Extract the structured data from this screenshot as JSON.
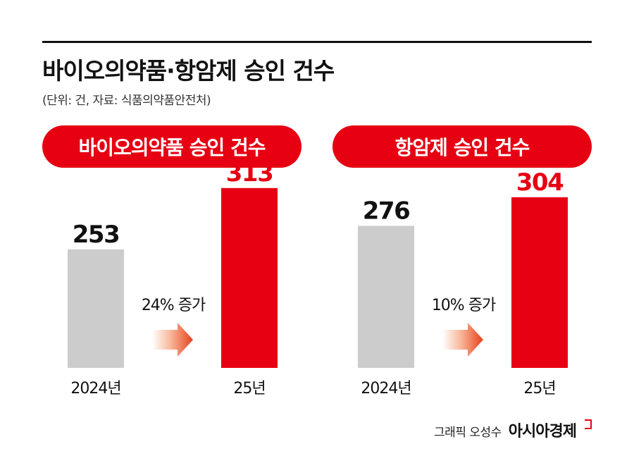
{
  "header": {
    "title": "바이오의약품·항암제 승인 건수",
    "subtitle": "(단위: 건, 자료: 식품의약품안전처)"
  },
  "colors": {
    "accent": "#e60012",
    "prior_bar": "#cccccc",
    "text": "#111111"
  },
  "chart_data": [
    {
      "type": "bar",
      "title": "바이오의약품 승인 건수",
      "categories": [
        "2024년",
        "25년"
      ],
      "values": [
        253,
        313
      ],
      "change_label": "24% 증가",
      "ylim": [
        0,
        330
      ]
    },
    {
      "type": "bar",
      "title": "항암제 승인 건수",
      "categories": [
        "2024년",
        "25년"
      ],
      "values": [
        276,
        304
      ],
      "change_label": "10% 증가",
      "ylim": [
        0,
        330
      ]
    }
  ],
  "credit": {
    "byline": "그래픽 오성수",
    "brand": "아시아경제"
  }
}
